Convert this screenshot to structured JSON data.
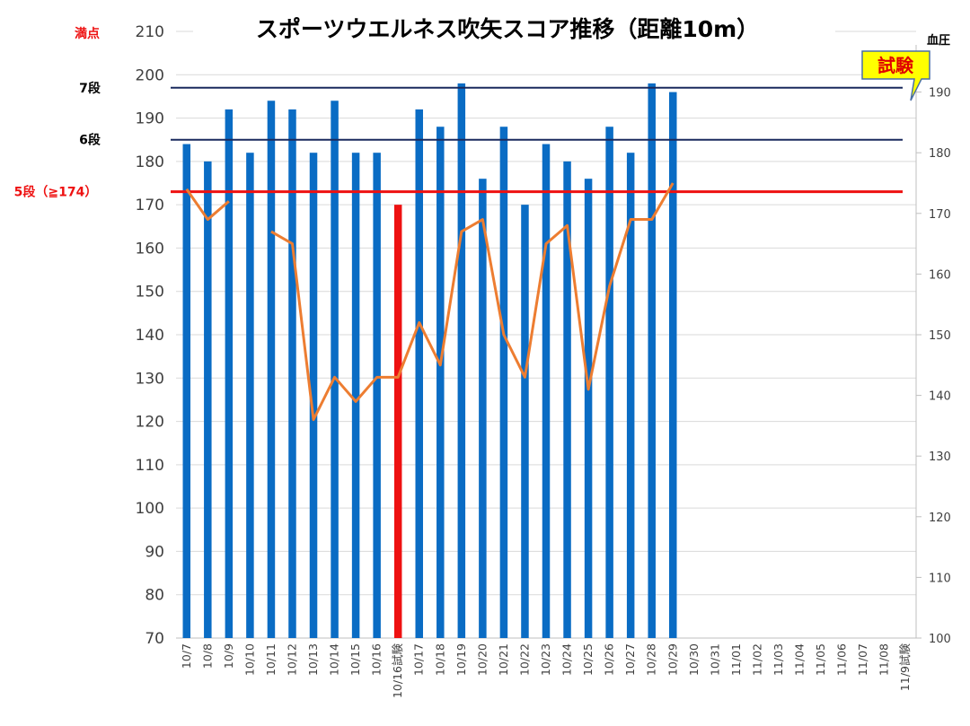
{
  "chart_data": {
    "type": "bar",
    "title": "スポーツウエルネス吹矢スコア推移（距離10m）",
    "categories": [
      "10/7",
      "10/8",
      "10/9",
      "10/10",
      "10/11",
      "10/12",
      "10/13",
      "10/14",
      "10/15",
      "10/16",
      "10/16試験",
      "10/17",
      "10/18",
      "10/19",
      "10/20",
      "10/21",
      "10/22",
      "10/23",
      "10/24",
      "10/25",
      "10/26",
      "10/27",
      "10/28",
      "10/29",
      "10/30",
      "10/31",
      "11/01",
      "11/02",
      "11/03",
      "11/04",
      "11/05",
      "11/06",
      "11/07",
      "11/08",
      "11/9試験"
    ],
    "ylim": [
      70,
      210
    ],
    "yticks": [
      70,
      80,
      90,
      100,
      110,
      120,
      130,
      140,
      150,
      160,
      170,
      180,
      190,
      200,
      210
    ],
    "y2lim": [
      100,
      200
    ],
    "y2label": "血圧",
    "y2ticks": [
      100,
      110,
      120,
      130,
      140,
      150,
      160,
      170,
      180,
      190
    ],
    "grid": true,
    "series": [
      {
        "type": "bar",
        "axis": "left",
        "color": "#0a6cc4",
        "values": [
          184,
          180,
          192,
          182,
          194,
          192,
          182,
          194,
          182,
          182,
          170,
          192,
          188,
          198,
          176,
          188,
          170,
          184,
          180,
          176,
          188,
          182,
          198,
          196,
          null,
          null,
          null,
          null,
          null,
          null,
          null,
          null,
          null,
          null,
          null
        ],
        "highlight": {
          "10/16試験": "#ee1111"
        }
      },
      {
        "name": "血圧",
        "type": "line",
        "axis": "right",
        "color": "#ed7d31",
        "values": [
          174,
          169,
          172,
          null,
          167,
          165,
          136,
          143,
          139,
          143,
          143,
          152,
          145,
          167,
          169,
          150,
          143,
          165,
          168,
          141,
          158,
          169,
          169,
          175,
          null,
          null,
          null,
          null,
          null,
          null,
          null,
          null,
          null,
          null,
          null
        ]
      }
    ],
    "reference_lines": [
      {
        "label": "7段",
        "value": 197,
        "color": "#1a2a5e",
        "label_color": "#000000"
      },
      {
        "label": "6段",
        "value": 185,
        "color": "#1a2a5e",
        "label_color": "#000000"
      },
      {
        "label": "5段（≧174）",
        "value": 173,
        "color": "#ee1111",
        "label_color": "#ee1111"
      }
    ],
    "annotations": [
      {
        "text": "満点",
        "value": 210,
        "color": "#ee1111"
      }
    ],
    "callout": {
      "text": "試験",
      "fill": "#ffff00",
      "border": "#4a6fa5",
      "text_color": "#e00000"
    }
  }
}
